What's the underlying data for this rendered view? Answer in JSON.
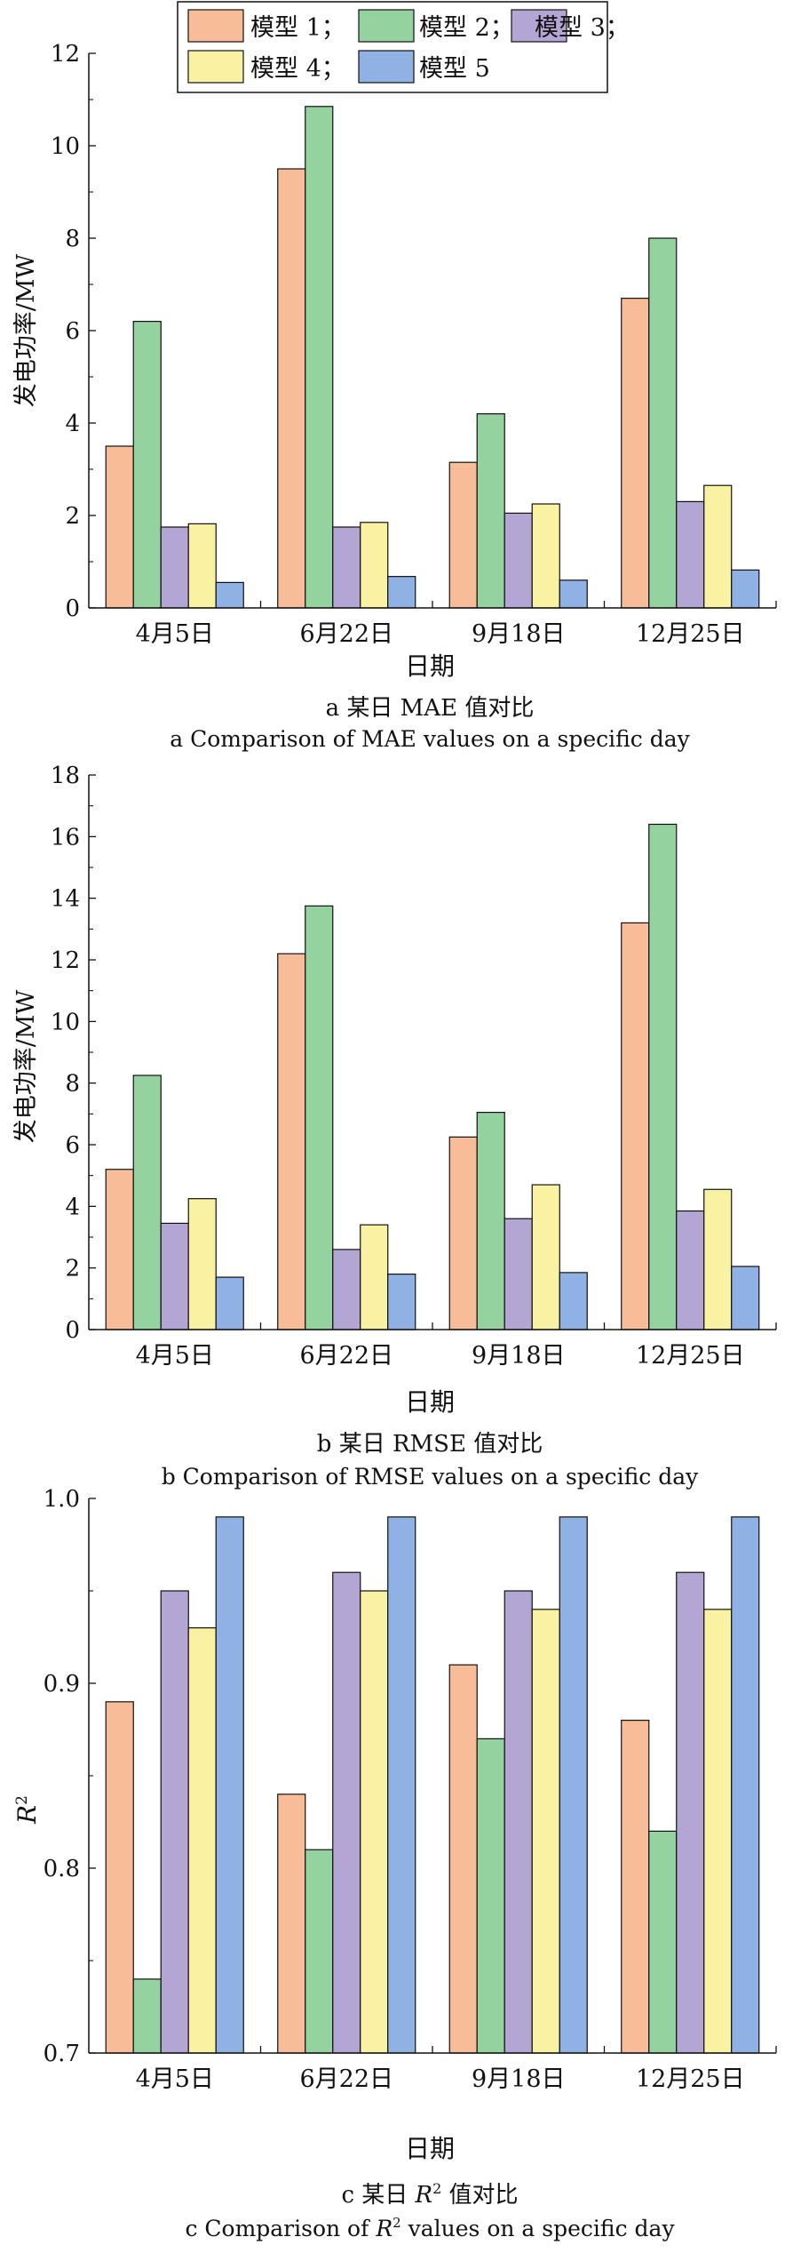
{
  "legend": {
    "placement": "top-center",
    "items": [
      {
        "label": "模型 1；",
        "color": "#f8bc98"
      },
      {
        "label": "模型 2；",
        "color": "#94d2a0"
      },
      {
        "label": "模型 3；",
        "color": "#b4a6d4"
      },
      {
        "label": "模型 4；",
        "color": "#f8f2a2"
      },
      {
        "label": "模型 5",
        "color": "#8fb1e3"
      }
    ]
  },
  "chart_data": [
    {
      "type": "bar",
      "categories": [
        "4月5日",
        "6月22日",
        "9月18日",
        "12月25日"
      ],
      "xlabel": "日期",
      "ylabel": "发电功率/MW",
      "ylim": [
        0,
        12
      ],
      "yticks": [
        "0",
        "2",
        "4",
        "6",
        "8",
        "10",
        "12"
      ],
      "caption_cn": "a 某日 MAE 值对比",
      "caption_en": "a Comparison of MAE values on a specific day",
      "grid": false,
      "series": [
        {
          "name": "模型 1",
          "values": [
            3.5,
            9.5,
            3.15,
            6.7
          ]
        },
        {
          "name": "模型 2",
          "values": [
            6.2,
            10.85,
            4.2,
            8.0
          ]
        },
        {
          "name": "模型 3",
          "values": [
            1.75,
            1.75,
            2.05,
            2.3
          ]
        },
        {
          "name": "模型 4",
          "values": [
            1.82,
            1.85,
            2.25,
            2.65
          ]
        },
        {
          "name": "模型 5",
          "values": [
            0.55,
            0.68,
            0.6,
            0.82
          ]
        }
      ]
    },
    {
      "type": "bar",
      "categories": [
        "4月5日",
        "6月22日",
        "9月18日",
        "12月25日"
      ],
      "xlabel": "日期",
      "ylabel": "发电功率/MW",
      "ylim": [
        0,
        18
      ],
      "yticks": [
        "0",
        "2",
        "4",
        "6",
        "8",
        "10",
        "12",
        "14",
        "16",
        "18"
      ],
      "caption_cn": "b 某日 RMSE 值对比",
      "caption_en": "b Comparison of RMSE values on a specific day",
      "grid": false,
      "series": [
        {
          "name": "模型 1",
          "values": [
            5.2,
            12.2,
            6.25,
            13.2
          ]
        },
        {
          "name": "模型 2",
          "values": [
            8.25,
            13.75,
            7.05,
            16.4
          ]
        },
        {
          "name": "模型 3",
          "values": [
            3.45,
            2.6,
            3.6,
            3.85
          ]
        },
        {
          "name": "模型 4",
          "values": [
            4.25,
            3.4,
            4.7,
            4.55
          ]
        },
        {
          "name": "模型 5",
          "values": [
            1.7,
            1.8,
            1.85,
            2.05
          ]
        }
      ]
    },
    {
      "type": "bar",
      "categories": [
        "4月5日",
        "6月22日",
        "9月18日",
        "12月25日"
      ],
      "xlabel": "日期",
      "ylabel": "R2",
      "ylim": [
        0.7,
        1.0
      ],
      "yticks": [
        "0.7",
        "0.8",
        "0.9",
        "1.0"
      ],
      "caption_cn": "c 某日 R2 值对比",
      "caption_en": "c Comparison of R2 values on a specific day",
      "grid": false,
      "series": [
        {
          "name": "模型 1",
          "values": [
            0.89,
            0.84,
            0.91,
            0.88
          ]
        },
        {
          "name": "模型 2",
          "values": [
            0.74,
            0.81,
            0.87,
            0.82
          ]
        },
        {
          "name": "模型 3",
          "values": [
            0.95,
            0.96,
            0.95,
            0.96
          ]
        },
        {
          "name": "模型 4",
          "values": [
            0.93,
            0.95,
            0.94,
            0.94
          ]
        },
        {
          "name": "模型 5",
          "values": [
            0.99,
            0.99,
            0.99,
            0.99
          ]
        }
      ]
    }
  ]
}
